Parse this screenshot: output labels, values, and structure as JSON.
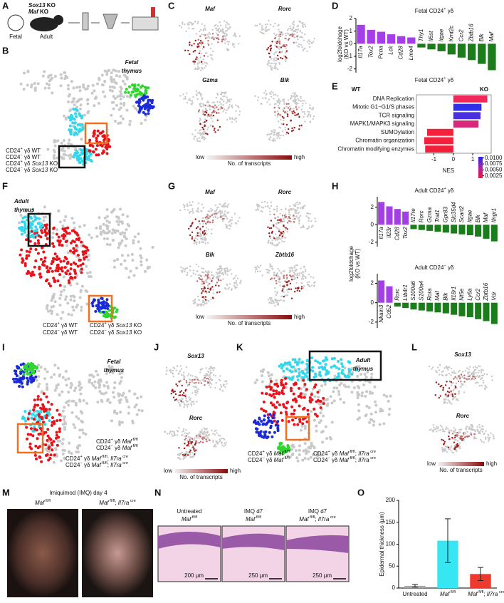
{
  "panels": {
    "A": {
      "label": "A",
      "genotype": [
        [
          {
            "text": "Sox13",
            "style": "i"
          },
          {
            "text": " KO"
          }
        ],
        [
          {
            "text": "Maf",
            "style": "i"
          },
          {
            "text": " KO"
          }
        ]
      ],
      "stages": [
        "Fetal",
        "Adult"
      ]
    },
    "B": {
      "label": "B",
      "title": [
        "Fetal",
        "thymus"
      ],
      "title_color": "#1f2bd6",
      "legend": [
        {
          "color": "#2fd8ec",
          "parts": [
            {
              "text": "CD24"
            },
            {
              "text": "+",
              "style": "sup"
            },
            {
              "text": " γδ WT"
            }
          ]
        },
        {
          "color": "#2ed62e",
          "parts": [
            {
              "text": "CD24"
            },
            {
              "text": "−",
              "style": "sup"
            },
            {
              "text": " γδ WT"
            }
          ]
        },
        {
          "color": "#e8121a",
          "parts": [
            {
              "text": "CD24"
            },
            {
              "text": "+",
              "style": "sup"
            },
            {
              "text": " γδ "
            },
            {
              "text": "Sox13",
              "style": "i"
            },
            {
              "text": " KO"
            }
          ]
        },
        {
          "color": "#1a2ad8",
          "parts": [
            {
              "text": "CD24"
            },
            {
              "text": "−",
              "style": "sup"
            },
            {
              "text": " γδ "
            },
            {
              "text": "Sox13",
              "style": "i"
            },
            {
              "text": " KO"
            }
          ]
        }
      ]
    },
    "C": {
      "label": "C",
      "genes": [
        "Maf",
        "Rorc",
        "Gzma",
        "Blk"
      ],
      "scale": {
        "low": "low",
        "high": "high",
        "caption": "No. of transcripts"
      }
    },
    "D": {
      "label": "D"
    },
    "E": {
      "label": "E"
    },
    "F": {
      "label": "F",
      "title": [
        "Adult",
        "thymus"
      ],
      "title_color": "#e8121a",
      "legend": [
        {
          "color": "#2fd8ec",
          "parts": [
            {
              "text": "CD24"
            },
            {
              "text": "+",
              "style": "sup"
            },
            {
              "text": " γδ WT"
            }
          ]
        },
        {
          "color": "#2ed62e",
          "parts": [
            {
              "text": "CD24"
            },
            {
              "text": "−",
              "style": "sup"
            },
            {
              "text": " γδ WT"
            }
          ]
        },
        {
          "color": "#e8121a",
          "parts": [
            {
              "text": "CD24"
            },
            {
              "text": "+",
              "style": "sup"
            },
            {
              "text": " γδ "
            },
            {
              "text": "Sox13",
              "style": "i"
            },
            {
              "text": " KO"
            }
          ]
        },
        {
          "color": "#1a2ad8",
          "parts": [
            {
              "text": "CD24"
            },
            {
              "text": "−",
              "style": "sup"
            },
            {
              "text": " γδ "
            },
            {
              "text": "Sox13",
              "style": "i"
            },
            {
              "text": " KO"
            }
          ]
        }
      ]
    },
    "G": {
      "label": "G",
      "genes": [
        "Maf",
        "Rorc",
        "Blk",
        "Zbtb16"
      ],
      "scale": {
        "low": "low",
        "high": "high",
        "caption": "No. of transcripts"
      }
    },
    "H": {
      "label": "H"
    },
    "I": {
      "label": "I",
      "title": [
        "Fetal",
        "thymus"
      ],
      "title_color": "#1f2bd6",
      "legend": [
        {
          "color": "#2fd8ec",
          "parts": [
            {
              "text": "CD24"
            },
            {
              "text": "+",
              "style": "sup"
            },
            {
              "text": " γδ "
            },
            {
              "text": "Maf",
              "style": "i"
            },
            {
              "text": " fl/fl",
              "style": "sup"
            }
          ]
        },
        {
          "color": "#2ed62e",
          "parts": [
            {
              "text": "CD24"
            },
            {
              "text": "−",
              "style": "sup"
            },
            {
              "text": " γδ "
            },
            {
              "text": "Maf",
              "style": "i"
            },
            {
              "text": " fl/fl",
              "style": "sup"
            }
          ]
        },
        {
          "color": "#e8121a",
          "parts": [
            {
              "text": "CD24"
            },
            {
              "text": "+",
              "style": "sup"
            },
            {
              "text": " γδ "
            },
            {
              "text": "Maf",
              "style": "i"
            },
            {
              "text": " fl/fl",
              "style": "sup"
            },
            {
              "text": "; "
            },
            {
              "text": "Il7ra",
              "style": "i"
            },
            {
              "text": " cre",
              "style": "sup"
            }
          ]
        },
        {
          "color": "#1a2ad8",
          "parts": [
            {
              "text": "CD24"
            },
            {
              "text": "−",
              "style": "sup"
            },
            {
              "text": " γδ "
            },
            {
              "text": "Maf",
              "style": "i"
            },
            {
              "text": " fl/fl",
              "style": "sup"
            },
            {
              "text": "; "
            },
            {
              "text": "Il7ra",
              "style": "i"
            },
            {
              "text": " cre",
              "style": "sup"
            }
          ]
        }
      ]
    },
    "J": {
      "label": "J",
      "genes": [
        "Sox13",
        "Rorc"
      ],
      "scale": {
        "low": "low",
        "high": "high",
        "caption": "No. of transcripts"
      }
    },
    "K": {
      "label": "K",
      "title": [
        "Adult",
        "thymus"
      ],
      "title_color": "#e8121a",
      "legend": [
        {
          "color": "#2fd8ec",
          "parts": [
            {
              "text": "CD24"
            },
            {
              "text": "+",
              "style": "sup"
            },
            {
              "text": " γδ "
            },
            {
              "text": "Maf",
              "style": "i"
            },
            {
              "text": " fl/fl",
              "style": "sup"
            }
          ]
        },
        {
          "color": "#2ed62e",
          "parts": [
            {
              "text": "CD24"
            },
            {
              "text": "−",
              "style": "sup"
            },
            {
              "text": " γδ "
            },
            {
              "text": "Maf",
              "style": "i"
            },
            {
              "text": " fl/fl",
              "style": "sup"
            }
          ]
        },
        {
          "color": "#e8121a",
          "parts": [
            {
              "text": "CD24"
            },
            {
              "text": "+",
              "style": "sup"
            },
            {
              "text": " γδ "
            },
            {
              "text": "Maf",
              "style": "i"
            },
            {
              "text": " fl/fl",
              "style": "sup"
            },
            {
              "text": "; "
            },
            {
              "text": "Il7ra",
              "style": "i"
            },
            {
              "text": " cre",
              "style": "sup"
            }
          ]
        },
        {
          "color": "#1a2ad8",
          "parts": [
            {
              "text": "CD24"
            },
            {
              "text": "−",
              "style": "sup"
            },
            {
              "text": " γδ "
            },
            {
              "text": "Maf",
              "style": "i"
            },
            {
              "text": " fl/fl",
              "style": "sup"
            },
            {
              "text": "; "
            },
            {
              "text": "Il7ra",
              "style": "i"
            },
            {
              "text": " cre",
              "style": "sup"
            }
          ]
        }
      ]
    },
    "L": {
      "label": "L",
      "genes": [
        "Sox13",
        "Rorc"
      ],
      "scale": {
        "low": "low",
        "high": "high",
        "caption": "No. of transcripts"
      }
    },
    "M": {
      "label": "M",
      "title": "Imiquimod (IMQ) day 4",
      "groups": [
        [
          {
            "text": "Maf",
            "style": "i"
          },
          {
            "text": " fl/fl",
            "style": "sup"
          }
        ],
        [
          {
            "text": "Maf",
            "style": "i"
          },
          {
            "text": " fl/fl",
            "style": "sup"
          },
          {
            "text": "; "
          },
          {
            "text": "Il7ra",
            "style": "i"
          },
          {
            "text": " cre",
            "style": "sup"
          }
        ]
      ]
    },
    "N": {
      "label": "N",
      "groups": [
        {
          "lines": [
            "Untreated",
            [
              {
                "text": "Maf",
                "style": "i"
              },
              {
                "text": " fl/fl",
                "style": "sup"
              }
            ]
          ],
          "scale_bar": "200 µm"
        },
        {
          "lines": [
            "IMQ d7",
            [
              {
                "text": "Maf",
                "style": "i"
              },
              {
                "text": " fl/fl",
                "style": "sup"
              }
            ]
          ],
          "scale_bar": "250 µm"
        },
        {
          "lines": [
            "IMQ d7",
            [
              {
                "text": "Maf",
                "style": "i"
              },
              {
                "text": " fl/fl",
                "style": "sup"
              },
              {
                "text": "; "
              },
              {
                "text": "Il7ra",
                "style": "i"
              },
              {
                "text": " cre",
                "style": "sup"
              }
            ]
          ],
          "scale_bar": "250 µm"
        }
      ]
    },
    "O": {
      "label": "O"
    }
  },
  "chart_data": [
    {
      "type": "bar",
      "title": [
        {
          "text": "Fetal CD24"
        },
        {
          "text": "+",
          "style": "sup"
        },
        {
          "text": " γδ"
        }
      ],
      "title_color": "#5b2fe0",
      "y_label": [
        "log2foldchage",
        "(KO vs WT)"
      ],
      "categories": [
        "Il17a",
        "Tox2",
        "Pcna",
        "Lck",
        "Cd28",
        "Lmo4",
        "Thy1",
        "Il6st",
        "Itgae",
        "Kmt2c",
        "Ccr2",
        "Zbtb16",
        "Blk",
        "Maf"
      ],
      "values": [
        1.5,
        1.1,
        0.95,
        0.75,
        0.6,
        0.5,
        -0.3,
        -0.45,
        -0.6,
        -0.85,
        -1.1,
        -1.3,
        -1.6,
        -2.1
      ],
      "pos_color": "#a43ee6",
      "neg_color": "#1a7d1a",
      "ylim": [
        -2.3,
        2
      ],
      "yticks": [
        -2,
        -1,
        0,
        1,
        2
      ]
    },
    {
      "type": "barh",
      "title": [
        {
          "text": "Fetal CD24"
        },
        {
          "text": "+",
          "style": "sup"
        },
        {
          "text": " γδ"
        }
      ],
      "title_color": "#5b2fe0",
      "left_label": "WT",
      "left_color": "#1a9a1a",
      "right_label": "KO",
      "right_color": "#a43ee6",
      "categories": [
        "DNA Replication",
        "Mitotic G1−G1/S phases",
        "TCR signaling",
        "MAPK1/MAPK3 signaling",
        "SUMOylation",
        "Chromatin organization",
        "Chromatin modifying enzymes"
      ],
      "values": [
        1.75,
        1.45,
        1.4,
        1.3,
        -1.35,
        -1.5,
        -1.45
      ],
      "colors": [
        "#f0285a",
        "#3030e8",
        "#4a2ee0",
        "#d8287a",
        "#f5203c",
        "#f5203c",
        "#f21e3a"
      ],
      "x_label": "NES",
      "xlim": [
        -1.9,
        1.95
      ],
      "xticks": [
        -1,
        0,
        1
      ],
      "colorbar": {
        "lim": [
          0.0015,
          0.0105
        ],
        "ticks": [
          {
            "value": 0.01,
            "label": "0.0100"
          },
          {
            "value": 0.0075,
            "label": "0.0075"
          },
          {
            "value": 0.005,
            "label": "0.0050"
          },
          {
            "value": 0.0025,
            "label": "0.0025"
          }
        ]
      }
    },
    {
      "type": "bar",
      "title": [
        {
          "text": "Adult CD24"
        },
        {
          "text": "+",
          "style": "sup"
        },
        {
          "text": " γδ"
        }
      ],
      "title_color": "#e8121a",
      "y_label": [
        "log2foldchage",
        "(KO vs WT)"
      ],
      "categories": [
        "Il17a",
        "Il23r",
        "Cd28",
        "Tox2",
        "Il17re",
        "Rorc",
        "Gzma",
        "Trat1",
        "Gpr83",
        "Slc35d4",
        "Scart2",
        "Itgae",
        "Blk",
        "Maf",
        "Ifngr1"
      ],
      "values": [
        2.6,
        2.1,
        1.8,
        1.5,
        -0.5,
        -0.6,
        -0.7,
        -0.8,
        -0.9,
        -1.0,
        -1.1,
        -1.2,
        -1.35,
        -1.6,
        -1.9
      ],
      "pos_color": "#a43ee6",
      "neg_color": "#1a7d1a",
      "ylim": [
        -2.5,
        3.2
      ],
      "yticks": [
        -2,
        0,
        2
      ]
    },
    {
      "type": "bar",
      "title": [
        {
          "text": "Adult CD24"
        },
        {
          "text": "−",
          "style": "sup"
        },
        {
          "text": " γδ"
        }
      ],
      "title_color": "#e8121a",
      "categories": [
        "Nkain3",
        "Cd52",
        "Rorc",
        "Ltb4r1",
        "S100a6",
        "S100a4",
        "Rora",
        "Maf",
        "Blk",
        "Il18r1",
        "Nt5e",
        "Ly6a",
        "Ccr2",
        "Zbtb16",
        "Vdr"
      ],
      "values": [
        2.3,
        1.7,
        -0.4,
        -0.55,
        -0.7,
        -0.8,
        -0.9,
        -1.0,
        -1.1,
        -1.25,
        -1.4,
        -1.5,
        -1.7,
        -1.9,
        -2.2
      ],
      "pos_color": "#a43ee6",
      "neg_color": "#1a7d1a",
      "ylim": [
        -2.6,
        3
      ],
      "yticks": [
        -2,
        0,
        2
      ]
    },
    {
      "type": "bar",
      "y_label": "Epidermal thickness (µm)",
      "categories": [
        "Untreated",
        [
          {
            "text": "Maf",
            "style": "i"
          },
          {
            "text": " fl/fl",
            "style": "sup"
          }
        ],
        [
          {
            "text": "Maf",
            "style": "i"
          },
          {
            "text": " fl/fl",
            "style": "sup"
          },
          {
            "text": "; "
          },
          {
            "text": "Il7ra",
            "style": "i"
          },
          {
            "text": " cre",
            "style": "sup"
          }
        ]
      ],
      "values": [
        5,
        108,
        32
      ],
      "errors": [
        3,
        50,
        15
      ],
      "colors": [
        "#a6a6a6",
        "#36e6f2",
        "#ec3a2e"
      ],
      "ylim": [
        0,
        200
      ],
      "yticks": [
        0,
        50,
        100,
        150,
        200
      ]
    }
  ]
}
